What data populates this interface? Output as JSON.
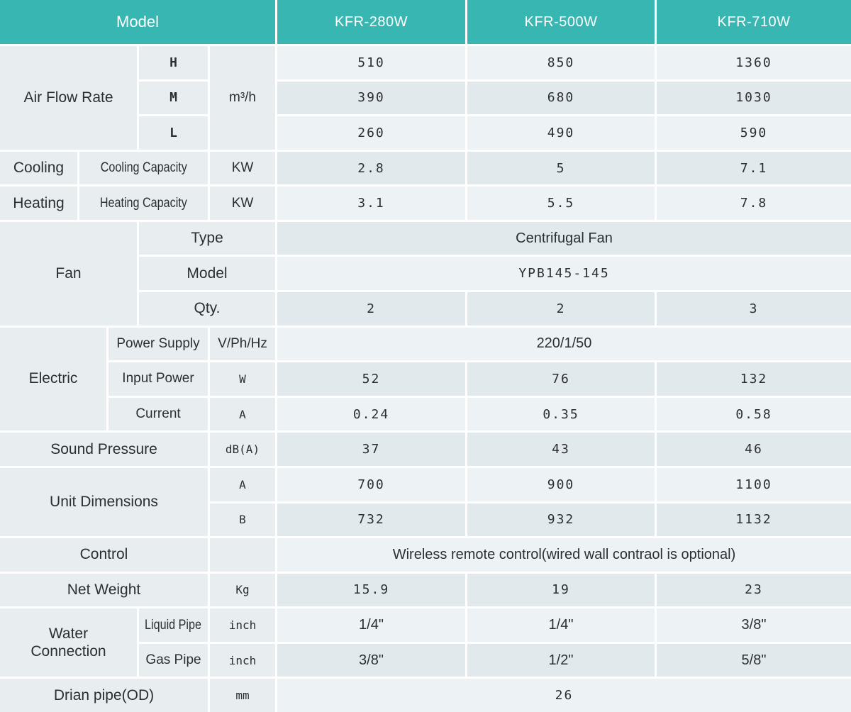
{
  "header": {
    "model_label": "Model",
    "model_columns": [
      "KFR-280W",
      "KFR-500W",
      "KFR-710W"
    ]
  },
  "colors": {
    "header_teal": "#38b6b2",
    "header_text": "#ffffff",
    "label_cell_gray": "#e8edef",
    "value_row_light": "#edf2f5",
    "value_row_dark": "#e2e9ec",
    "grid_line": "#ffffff",
    "text": "#2c2f31"
  },
  "rows": [
    {
      "group": "Air Flow Rate",
      "sub": "H",
      "unit": "m³/h",
      "values": [
        "510",
        "850",
        "1360"
      ]
    },
    {
      "sub": "M",
      "values": [
        "390",
        "680",
        "1030"
      ]
    },
    {
      "sub": "L",
      "values": [
        "260",
        "490",
        "590"
      ]
    },
    {
      "group": "Cooling",
      "sub": "Cooling Capacity",
      "unit": "KW",
      "values": [
        "2.8",
        "5",
        "7.1"
      ]
    },
    {
      "group": "Heating",
      "sub": "Heating Capacity",
      "unit": "KW",
      "values": [
        "3.1",
        "5.5",
        "7.8"
      ]
    },
    {
      "group": "Fan",
      "sub": "Type",
      "value_span": "Centrifugal Fan"
    },
    {
      "sub": "Model",
      "value_span": "YPB145-145"
    },
    {
      "sub": "Qty.",
      "values": [
        "2",
        "2",
        "3"
      ]
    },
    {
      "group": "Electric",
      "sub": "Power Supply",
      "unit": "V/Ph/Hz",
      "value_span": "220/1/50"
    },
    {
      "sub": "Input Power",
      "unit": "W",
      "values": [
        "52",
        "76",
        "132"
      ]
    },
    {
      "sub": "Current",
      "unit": "A",
      "values": [
        "0.24",
        "0.35",
        "0.58"
      ]
    },
    {
      "group": "Sound Pressure",
      "unit": "dB(A)",
      "values": [
        "37",
        "43",
        "46"
      ]
    },
    {
      "group": "Unit Dimensions",
      "unit": "A",
      "values": [
        "700",
        "900",
        "1100"
      ]
    },
    {
      "unit": "B",
      "values": [
        "732",
        "932",
        "1132"
      ]
    },
    {
      "group": "Control",
      "unit": "",
      "value_span": "Wireless remote control(wired wall contraol is optional)"
    },
    {
      "group": "Net Weight",
      "unit": "Kg",
      "values": [
        "15.9",
        "19",
        "23"
      ]
    },
    {
      "group": "Water Connection",
      "sub": "Liquid Pipe",
      "unit": "inch",
      "values": [
        "1/4\"",
        "1/4\"",
        "3/8\""
      ]
    },
    {
      "sub": "Gas Pipe",
      "unit": "inch",
      "values": [
        "3/8\"",
        "1/2\"",
        "5/8\""
      ]
    },
    {
      "group": "Drian pipe(OD)",
      "unit": "mm",
      "value_span": "26"
    }
  ]
}
